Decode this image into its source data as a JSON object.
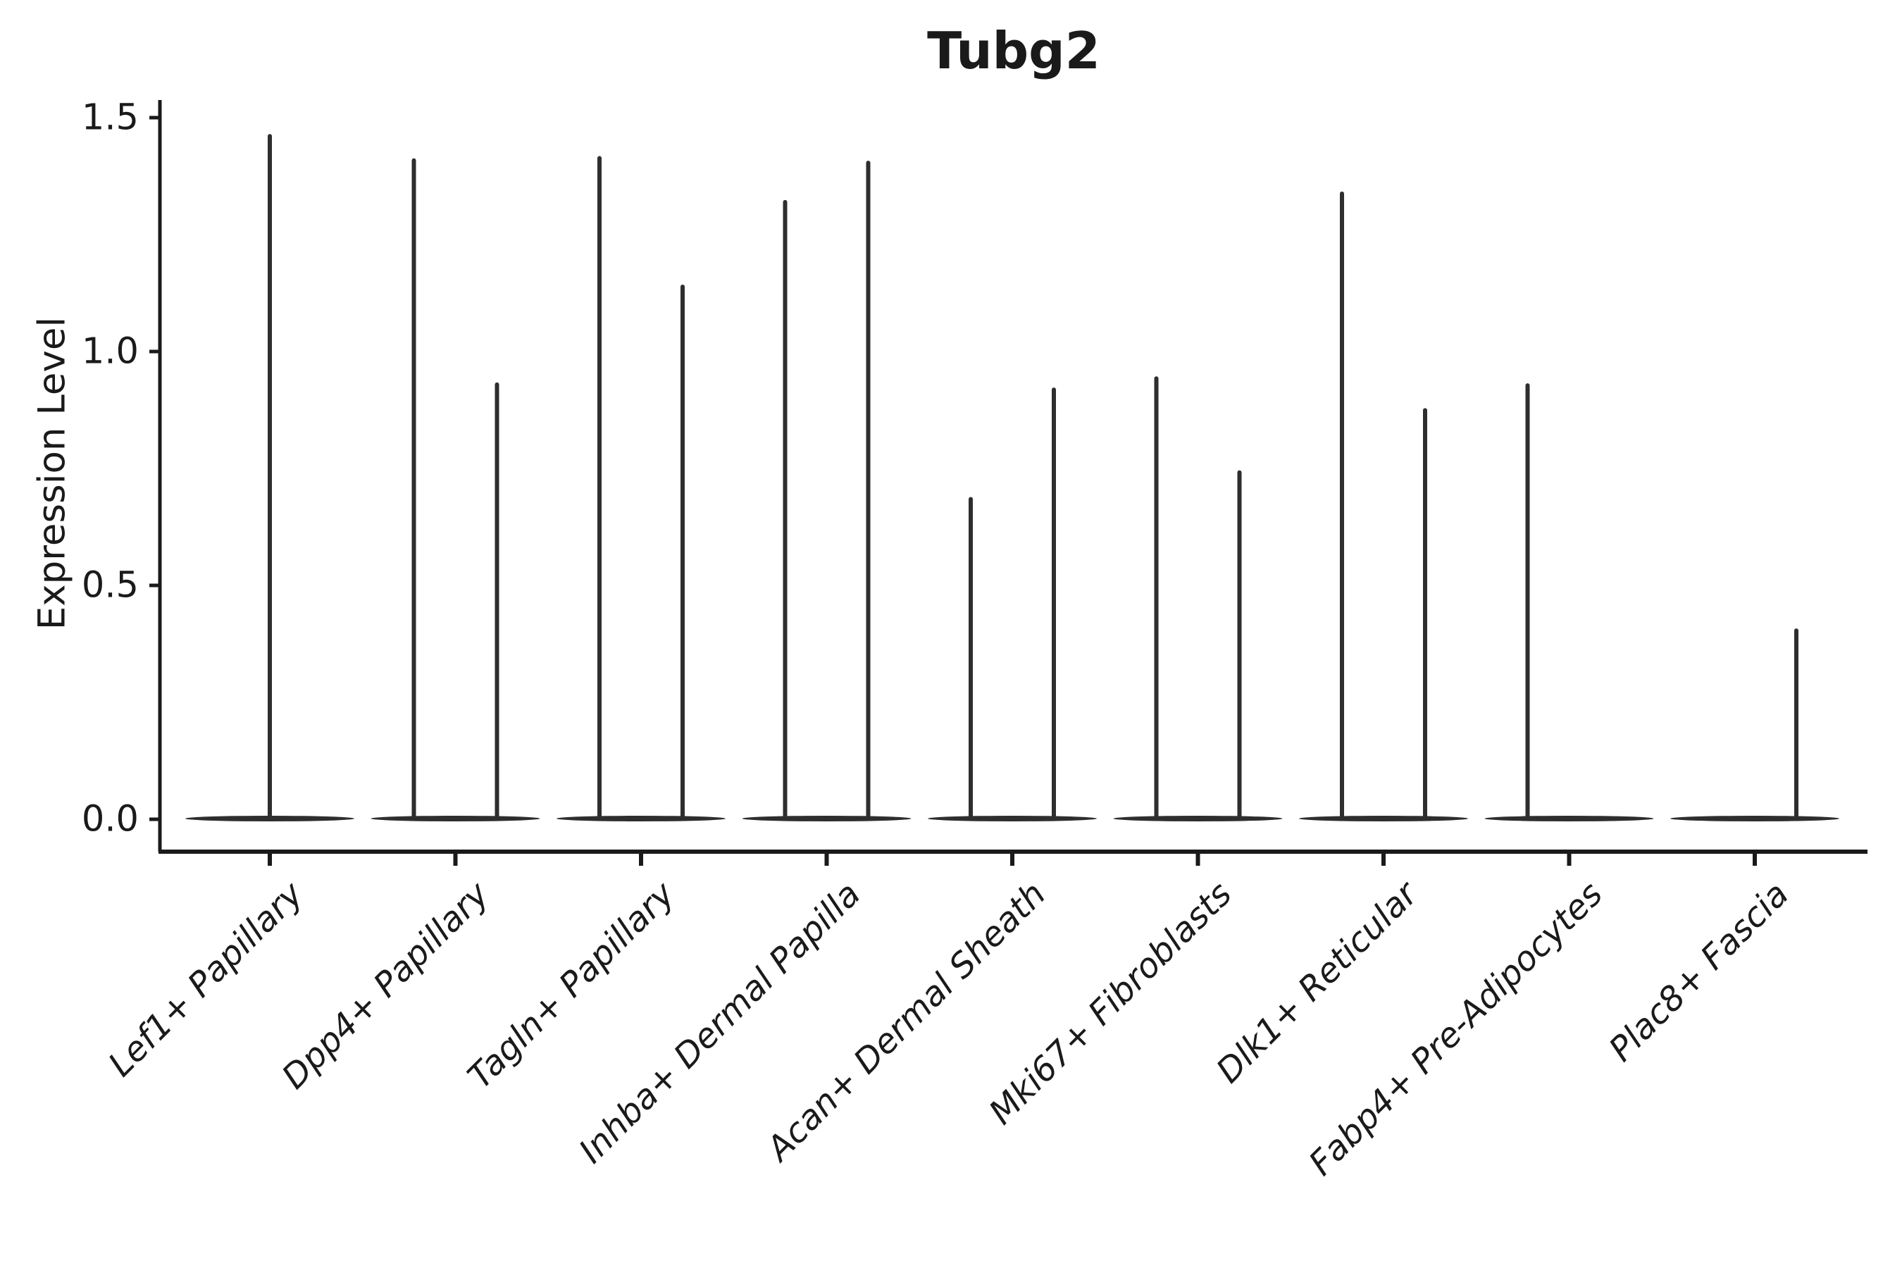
{
  "style": {
    "background": "#ffffff",
    "ink": "#1a1a1a",
    "violin_color": "#2e2e2e"
  },
  "chart_data": {
    "type": "violin",
    "title": "Tubg2",
    "xlabel": "",
    "ylabel": "Expression Level",
    "legend": "none",
    "grid": false,
    "ylim": [
      -0.07,
      1.61
    ],
    "yticks": [
      {
        "label": "1.5",
        "value": 1.5
      },
      {
        "label": "1.0",
        "value": 1.0
      },
      {
        "label": "0.5",
        "value": 0.5
      },
      {
        "label": "0.0",
        "value": 0.0
      }
    ],
    "categories": [
      "Lef1+ Papillary",
      "Dpp4+ Papillary",
      "Tagln+ Papillary",
      "Inhba+ Dermal Papilla",
      "Acan+ Dermal Sheath",
      "Mki67+ Fibroblasts",
      "Dlk1+ Reticular",
      "Fabp4+ Pre-Adipocytes",
      "Plac8+ Fascia"
    ],
    "description": "Violin plot of Tubg2 expression; nearly all cells have expression 0, so each violin renders as a wide flat base at 0 with a thin central spike reaching the maximum expressed value. Categories with two dodged violins show two spikes; max_expression 0 means a flat all-zero violin with no spike.",
    "violins": [
      {
        "category": "Lef1+ Papillary",
        "slot": "full",
        "max_expression": 1.465
      },
      {
        "category": "Dpp4+ Papillary",
        "slot": "left",
        "max_expression": 1.413
      },
      {
        "category": "Dpp4+ Papillary",
        "slot": "right",
        "max_expression": 0.934
      },
      {
        "category": "Tagln+ Papillary",
        "slot": "left",
        "max_expression": 1.418
      },
      {
        "category": "Tagln+ Papillary",
        "slot": "right",
        "max_expression": 1.143
      },
      {
        "category": "Inhba+ Dermal Papilla",
        "slot": "left",
        "max_expression": 1.324
      },
      {
        "category": "Inhba+ Dermal Papilla",
        "slot": "right",
        "max_expression": 1.408
      },
      {
        "category": "Acan+ Dermal Sheath",
        "slot": "left",
        "max_expression": 0.689
      },
      {
        "category": "Acan+ Dermal Sheath",
        "slot": "right",
        "max_expression": 0.923
      },
      {
        "category": "Mki67+ Fibroblasts",
        "slot": "left",
        "max_expression": 0.947
      },
      {
        "category": "Mki67+ Fibroblasts",
        "slot": "right",
        "max_expression": 0.746
      },
      {
        "category": "Dlk1+ Reticular",
        "slot": "left",
        "max_expression": 1.342
      },
      {
        "category": "Dlk1+ Reticular",
        "slot": "right",
        "max_expression": 0.879
      },
      {
        "category": "Fabp4+ Pre-Adipocytes",
        "slot": "left",
        "max_expression": 0.932
      },
      {
        "category": "Fabp4+ Pre-Adipocytes",
        "slot": "right",
        "max_expression": 0.0
      },
      {
        "category": "Plac8+ Fascia",
        "slot": "left",
        "max_expression": 0.0
      },
      {
        "category": "Plac8+ Fascia",
        "slot": "right",
        "max_expression": 0.408
      }
    ]
  }
}
